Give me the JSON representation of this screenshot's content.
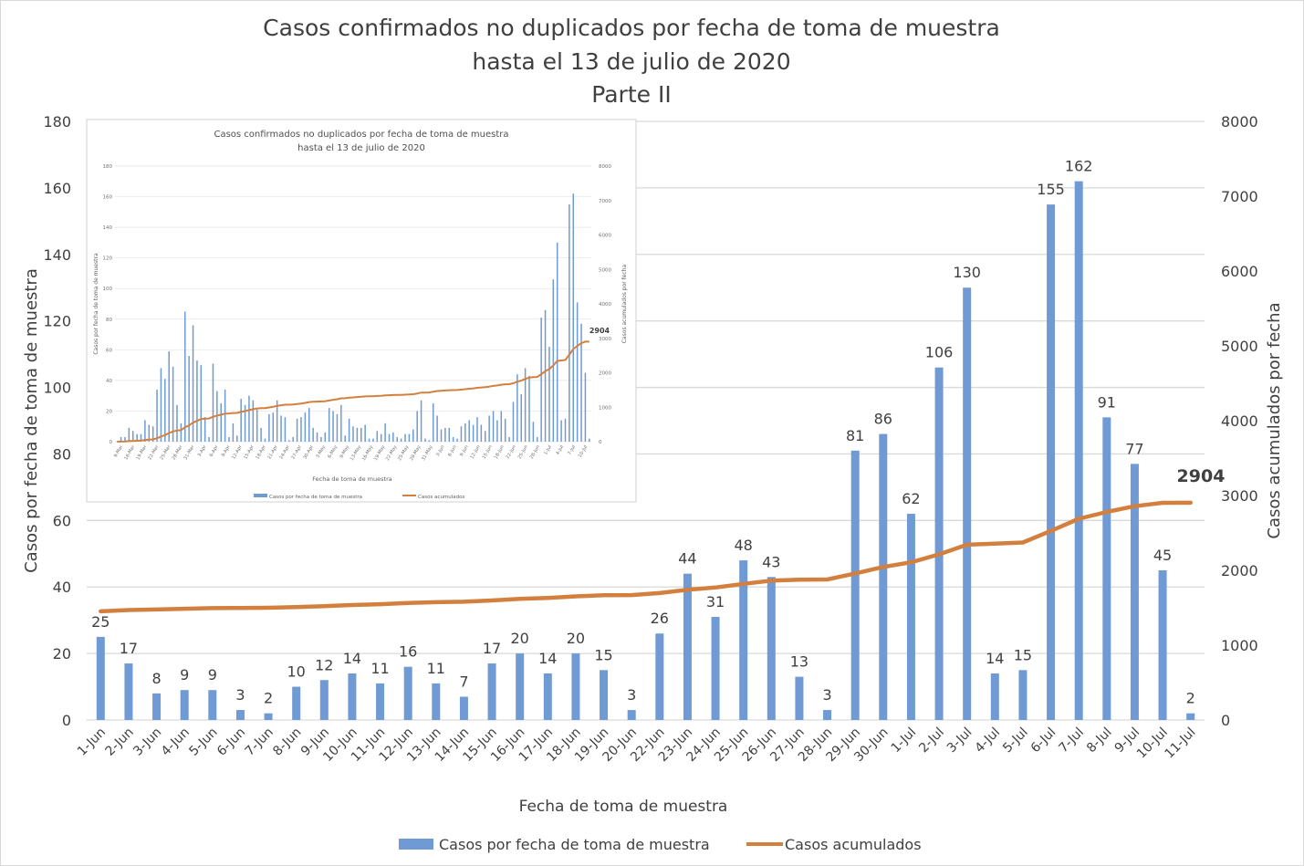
{
  "chart_data": {
    "type": "bar+line",
    "title": "Casos confirmados no duplicados por fecha de toma de muestra",
    "subtitle": "hasta el 13 de julio de 2020",
    "subtitle2": "Parte II",
    "xlabel": "Fecha de toma de muestra",
    "ylabel": "Casos por fecha de toma de muestra",
    "ylabel_right": "Casos acumulados por fecha",
    "ylim": [
      0,
      180
    ],
    "ylim_right": [
      0,
      8000
    ],
    "yticks": [
      "0",
      "20",
      "40",
      "60",
      "80",
      "100",
      "120",
      "140",
      "160",
      "180"
    ],
    "yticks_right": [
      "0",
      "1000",
      "2000",
      "3000",
      "4000",
      "5000",
      "6000",
      "7000",
      "8000"
    ],
    "grid": true,
    "legend_position": "bottom",
    "categories": [
      "1-Jun",
      "2-Jun",
      "3-Jun",
      "4-Jun",
      "5-Jun",
      "6-Jun",
      "7-Jun",
      "8-Jun",
      "9-Jun",
      "10-Jun",
      "11-Jun",
      "12-Jun",
      "13-Jun",
      "14-Jun",
      "15-Jun",
      "16-Jun",
      "17-Jun",
      "18-Jun",
      "19-Jun",
      "20-Jun",
      "22-Jun",
      "23-Jun",
      "24-Jun",
      "25-Jun",
      "26-Jun",
      "27-Jun",
      "28-Jun",
      "29-Jun",
      "30-Jun",
      "1-Jul",
      "2-Jul",
      "3-Jul",
      "4-Jul",
      "5-Jul",
      "6-Jul",
      "7-Jul",
      "8-Jul",
      "9-Jul",
      "10-Jul",
      "11-Jul"
    ],
    "series": [
      {
        "name": "Casos por fecha de toma de muestra",
        "type": "bar",
        "axis": "left",
        "color": "#6f9ad3",
        "values": [
          25,
          17,
          8,
          9,
          9,
          3,
          2,
          10,
          12,
          14,
          11,
          16,
          11,
          7,
          17,
          20,
          14,
          20,
          15,
          3,
          26,
          44,
          31,
          48,
          43,
          13,
          3,
          81,
          86,
          62,
          106,
          130,
          14,
          15,
          155,
          162,
          91,
          77,
          45,
          2
        ]
      },
      {
        "name": "Casos acumulados",
        "type": "line",
        "axis": "right",
        "color": "#d3803f",
        "values": [
          1452,
          1469,
          1477,
          1486,
          1495,
          1498,
          1500,
          1510,
          1522,
          1536,
          1547,
          1563,
          1574,
          1581,
          1598,
          1618,
          1632,
          1652,
          1667,
          1670,
          1696,
          1740,
          1771,
          1819,
          1862,
          1875,
          1878,
          1959,
          2045,
          2107,
          2213,
          2343,
          2357,
          2372,
          2527,
          2689,
          2780,
          2857,
          2902,
          2904
        ]
      }
    ],
    "last_value_label": "2904",
    "inset": {
      "title": "Casos confirmados no duplicados por fecha de toma de muestra",
      "subtitle": "hasta el 13 de julio de 2020",
      "xlabel": "Fecha de toma de muestra",
      "ylabel": "Casos por fecha de toma de muestra",
      "ylabel_right": "Casos acumulados por fecha",
      "yticks": [
        "0",
        "20",
        "40",
        "60",
        "80",
        "100",
        "120",
        "140",
        "160",
        "180"
      ],
      "yticks_right": [
        "0",
        "1000",
        "2000",
        "3000",
        "4000",
        "5000",
        "6000",
        "7000",
        "8000"
      ],
      "xticks": [
        "9-Mar",
        "16-Mar",
        "19-Mar",
        "22-Mar",
        "25-Mar",
        "28-Mar",
        "31-Mar",
        "3-Apr",
        "6-Apr",
        "9-Apr",
        "12-Apr",
        "15-Apr",
        "18-Apr",
        "21-Apr",
        "24-Apr",
        "27-Apr",
        "30-Apr",
        "3-May",
        "6-May",
        "9-May",
        "13-May",
        "16-May",
        "19-May",
        "22-May",
        "25-May",
        "28-May",
        "31-May",
        "3-Jun",
        "6-Jun",
        "9-Jun",
        "12-Jun",
        "15-Jun",
        "18-Jun",
        "22-Jun",
        "25-Jun",
        "28-Jun",
        "1-Jul",
        "4-Jul",
        "7-Jul",
        "10-Jul"
      ],
      "bar_values": [
        0,
        3,
        3,
        9,
        7,
        5,
        5,
        14,
        11,
        10,
        34,
        48,
        41,
        59,
        49,
        24,
        12,
        85,
        56,
        76,
        53,
        50,
        16,
        3,
        51,
        33,
        25,
        34,
        3,
        12,
        4,
        28,
        24,
        30,
        27,
        21,
        9,
        2,
        18,
        19,
        27,
        17,
        16,
        1,
        3,
        15,
        16,
        19,
        22,
        9,
        6,
        3,
        6,
        22,
        20,
        18,
        24,
        4,
        15,
        10,
        9,
        9,
        11,
        2,
        2,
        7,
        5,
        12,
        5,
        6,
        3,
        2,
        5,
        5,
        8,
        20,
        27,
        2,
        1,
        25,
        17,
        8,
        9,
        9,
        3,
        2,
        10,
        12,
        14,
        11,
        16,
        11,
        7,
        17,
        20,
        14,
        20,
        15,
        3,
        26,
        44,
        31,
        48,
        43,
        13,
        3,
        81,
        86,
        62,
        106,
        130,
        14,
        15,
        155,
        162,
        91,
        77,
        45,
        2
      ],
      "last_value_label": "2904",
      "legend": [
        "Casos por fecha de toma de muestra",
        "Casos acumulados"
      ]
    }
  }
}
